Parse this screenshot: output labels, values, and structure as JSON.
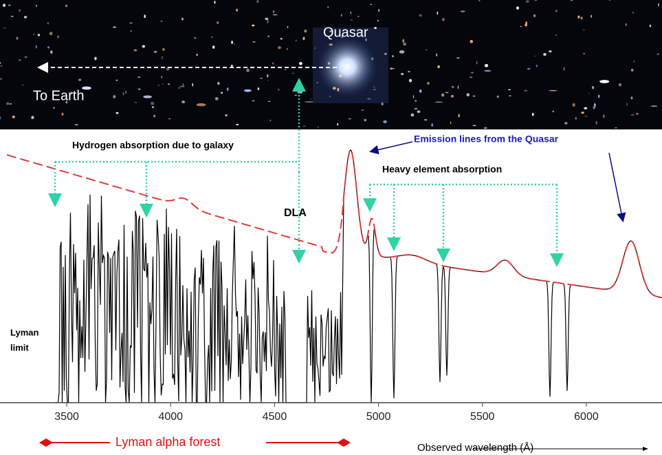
{
  "image": {
    "quasar_label": "Quasar",
    "earth_label": "To Earth"
  },
  "annotations": {
    "hydrogen": "Hydrogen absorption due to galaxy",
    "emission": "Emission lines from the Quasar",
    "heavy": "Heavy element absorption",
    "dla": "DLA",
    "lyman_limit": [
      "Lyman",
      "limit"
    ],
    "lyman_forest": "Lyman alpha forest"
  },
  "spectrum": {
    "x_label": "Observed wavelength (Å)",
    "xlim": [
      3212,
      6364
    ],
    "xticks": [
      3500,
      4000,
      4500,
      5000,
      5500,
      6000
    ]
  }
}
